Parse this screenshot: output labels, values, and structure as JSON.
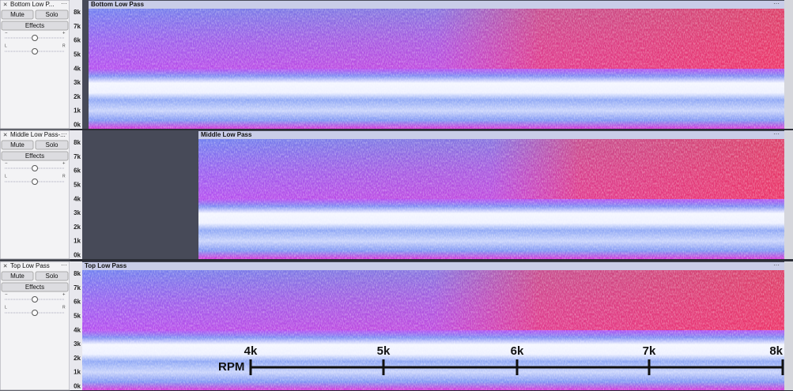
{
  "tracks": [
    {
      "name": "Bottom Low P...",
      "menu": "···",
      "buttons": [
        "Mute",
        "Solo",
        "Effects"
      ],
      "gain_labels": [
        "−",
        "+"
      ],
      "pan_labels": [
        "L",
        "R"
      ],
      "freq_labels": [
        "8k",
        "7k",
        "6k",
        "5k",
        "4k",
        "3k",
        "2k",
        "1k",
        "0k"
      ],
      "clip_title": "Bottom Low Pass",
      "clip_menu": "···"
    },
    {
      "name": "Middle Low Pass-...",
      "menu": "···",
      "buttons": [
        "Mute",
        "Solo",
        "Effects"
      ],
      "gain_labels": [
        "−",
        "+"
      ],
      "pan_labels": [
        "L",
        "R"
      ],
      "freq_labels": [
        "8k",
        "7k",
        "6k",
        "5k",
        "4k",
        "3k",
        "2k",
        "1k",
        "0k"
      ],
      "clip_title": "Middle Low Pass",
      "clip_menu": "···"
    },
    {
      "name": "Top Low Pass",
      "menu": "···",
      "buttons": [
        "Mute",
        "Solo",
        "Effects"
      ],
      "gain_labels": [
        "−",
        "+"
      ],
      "pan_labels": [
        "L",
        "R"
      ],
      "freq_labels": [
        "8k",
        "7k",
        "6k",
        "5k",
        "4k",
        "3k",
        "2k",
        "1k",
        "0k"
      ],
      "clip_title": "Top Low Pass",
      "clip_menu": "···"
    }
  ],
  "rpm": {
    "label": "RPM",
    "ticks": [
      "4k",
      "5k",
      "6k",
      "7k",
      "8k"
    ]
  }
}
